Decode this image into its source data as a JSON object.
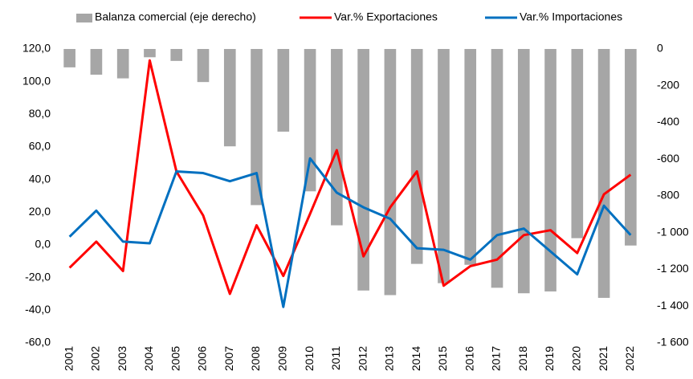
{
  "chart_data": {
    "type": "bar-line",
    "categories": [
      "2001",
      "2002",
      "2003",
      "2004",
      "2005",
      "2006",
      "2007",
      "2008",
      "2009",
      "2010",
      "2011",
      "2012",
      "2013",
      "2014",
      "2015",
      "2016",
      "2017",
      "2018",
      "2019",
      "2020",
      "2021",
      "2022"
    ],
    "series": [
      {
        "name": "Balanza comercial (eje derecho)",
        "type": "bar",
        "axis": "y2",
        "color": "#a6a6a6",
        "values": [
          -100,
          -140,
          -160,
          -45,
          -65,
          -180,
          -530,
          -850,
          -450,
          -775,
          -960,
          -1315,
          -1340,
          -1170,
          -1275,
          -1175,
          -1300,
          -1330,
          -1320,
          -1030,
          -1355,
          -1070
        ]
      },
      {
        "name": "Var.% Exportaciones",
        "type": "line",
        "axis": "y",
        "color": "#ff0000",
        "values": [
          -14,
          2,
          -16,
          113,
          45,
          18,
          -30,
          12,
          -19,
          19,
          58,
          -7,
          23,
          45,
          -25,
          -13,
          -9,
          6,
          9,
          -5,
          31,
          43
        ]
      },
      {
        "name": "Var.% Importaciones",
        "type": "line",
        "axis": "y",
        "color": "#0070c0",
        "values": [
          5,
          21,
          2,
          1,
          45,
          44,
          39,
          44,
          -38,
          53,
          32,
          23,
          16,
          -2,
          -3,
          -9,
          6,
          10,
          -4,
          -18,
          24,
          6
        ]
      }
    ],
    "ylim": [
      -60,
      120
    ],
    "yticks": [
      {
        "value": 120,
        "label": "120,0"
      },
      {
        "value": 100,
        "label": "100,0"
      },
      {
        "value": 80,
        "label": "80,0"
      },
      {
        "value": 60,
        "label": "60,0"
      },
      {
        "value": 40,
        "label": "40,0"
      },
      {
        "value": 20,
        "label": "20,0"
      },
      {
        "value": 0,
        "label": "0,0"
      },
      {
        "value": -20,
        "label": "-20,0"
      },
      {
        "value": -40,
        "label": "-40,0"
      },
      {
        "value": -60,
        "label": "-60,0"
      }
    ],
    "y2lim": [
      -1600,
      0
    ],
    "y2ticks": [
      0,
      -200,
      -400,
      -600,
      -800,
      {
        "value": -1000,
        "label": "-1 000"
      },
      {
        "value": -1200,
        "label": "-1 200"
      },
      {
        "value": -1400,
        "label": "-1 400"
      },
      {
        "value": -1600,
        "label": "-1 600"
      }
    ],
    "legend": "top"
  }
}
